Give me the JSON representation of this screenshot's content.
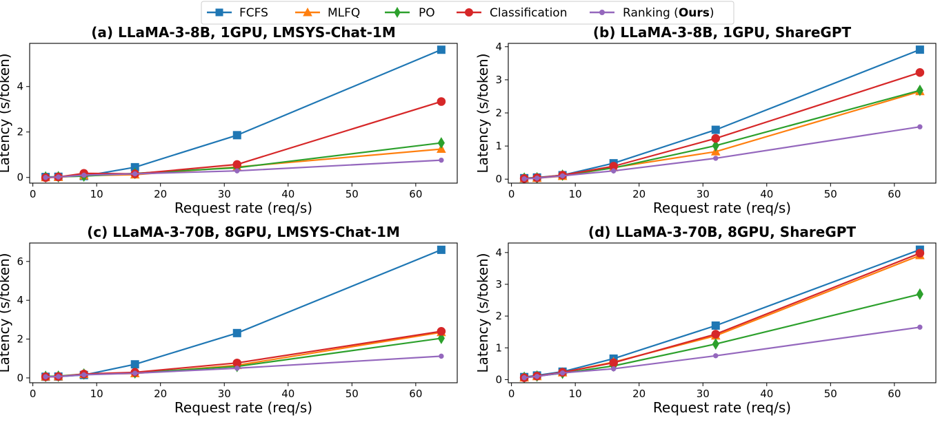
{
  "legend": {
    "items": [
      {
        "label": "FCFS",
        "suffix": "",
        "bold": "",
        "close": ""
      },
      {
        "label": "MLFQ",
        "suffix": "",
        "bold": "",
        "close": ""
      },
      {
        "label": "PO",
        "suffix": "",
        "bold": "",
        "close": ""
      },
      {
        "label": "Classification",
        "suffix": "",
        "bold": "",
        "close": ""
      },
      {
        "label": "Ranking (",
        "suffix": "",
        "bold": "Ours",
        "close": ")"
      }
    ]
  },
  "colors": {
    "FCFS": "#1f77b4",
    "MLFQ": "#ff7f0e",
    "PO": "#2ca02c",
    "Classification": "#d62728",
    "Ranking": "#9467bd"
  },
  "markers": {
    "FCFS": "square",
    "MLFQ": "triangle-up",
    "PO": "thin-diamond",
    "Classification": "circle",
    "Ranking": "small-circle"
  },
  "chart_data": [
    {
      "type": "line",
      "title": "(a) LLaMA-3-8B, 1GPU, LMSYS-Chat-1M",
      "xlabel": "Request rate (req/s)",
      "ylabel": "Latency (s/token)",
      "xlim": [
        -0.5,
        66.5
      ],
      "ylim": [
        -0.25,
        5.9
      ],
      "xticks": [
        0,
        10,
        20,
        30,
        40,
        50,
        60
      ],
      "yticks": [
        0,
        2,
        4
      ],
      "x": [
        2,
        4,
        8,
        16,
        32,
        64
      ],
      "series": [
        {
          "name": "FCFS",
          "values": [
            0.02,
            0.03,
            0.06,
            0.45,
            1.86,
            5.62
          ]
        },
        {
          "name": "MLFQ",
          "values": [
            0.0,
            0.01,
            0.08,
            0.12,
            0.46,
            1.25
          ]
        },
        {
          "name": "PO",
          "values": [
            0.02,
            0.03,
            0.06,
            0.18,
            0.43,
            1.52
          ]
        },
        {
          "name": "Classification",
          "values": [
            -0.01,
            0.02,
            0.18,
            0.16,
            0.57,
            3.34
          ]
        },
        {
          "name": "Ranking",
          "values": [
            0.0,
            0.02,
            0.1,
            0.16,
            0.29,
            0.76
          ]
        }
      ]
    },
    {
      "type": "line",
      "title": "(b) LLaMA-3-8B, 1GPU, ShareGPT",
      "xlabel": "Request rate (req/s)",
      "ylabel": "Latency (s/token)",
      "xlim": [
        -0.5,
        66.5
      ],
      "ylim": [
        -0.12,
        4.1
      ],
      "xticks": [
        0,
        10,
        20,
        30,
        40,
        50,
        60
      ],
      "yticks": [
        0,
        1,
        2,
        3,
        4
      ],
      "x": [
        2,
        4,
        8,
        16,
        32,
        64
      ],
      "series": [
        {
          "name": "FCFS",
          "values": [
            0.03,
            0.05,
            0.12,
            0.48,
            1.49,
            3.91
          ]
        },
        {
          "name": "MLFQ",
          "values": [
            0.02,
            0.03,
            0.09,
            0.35,
            0.83,
            2.65
          ]
        },
        {
          "name": "PO",
          "values": [
            0.03,
            0.04,
            0.12,
            0.34,
            1.01,
            2.68
          ]
        },
        {
          "name": "Classification",
          "values": [
            0.02,
            0.04,
            0.12,
            0.39,
            1.23,
            3.22
          ]
        },
        {
          "name": "Ranking",
          "values": [
            0.01,
            0.03,
            0.1,
            0.25,
            0.63,
            1.58
          ]
        }
      ]
    },
    {
      "type": "line",
      "title": "(c) LLaMA-3-70B, 8GPU, LMSYS-Chat-1M",
      "xlabel": "Request rate (req/s)",
      "ylabel": "Latency (s/token)",
      "xlim": [
        -0.5,
        66.5
      ],
      "ylim": [
        -0.25,
        6.95
      ],
      "xticks": [
        0,
        10,
        20,
        30,
        40,
        50,
        60
      ],
      "yticks": [
        0,
        2,
        4,
        6
      ],
      "x": [
        2,
        4,
        8,
        16,
        32,
        64
      ],
      "series": [
        {
          "name": "FCFS",
          "values": [
            0.06,
            0.07,
            0.15,
            0.7,
            2.31,
            6.6
          ]
        },
        {
          "name": "MLFQ",
          "values": [
            0.06,
            0.07,
            0.19,
            0.23,
            0.65,
            2.35
          ]
        },
        {
          "name": "PO",
          "values": [
            0.08,
            0.09,
            0.2,
            0.26,
            0.59,
            2.04
          ]
        },
        {
          "name": "Classification",
          "values": [
            0.06,
            0.07,
            0.2,
            0.29,
            0.77,
            2.4
          ]
        },
        {
          "name": "Ranking",
          "values": [
            0.06,
            0.07,
            0.16,
            0.24,
            0.5,
            1.12
          ]
        }
      ]
    },
    {
      "type": "line",
      "title": "(d) LLaMA-3-70B, 8GPU, ShareGPT",
      "xlabel": "Request rate (req/s)",
      "ylabel": "Latency (s/token)",
      "xlim": [
        -0.5,
        66.5
      ],
      "ylim": [
        -0.1,
        4.3
      ],
      "xticks": [
        0,
        10,
        20,
        30,
        40,
        50,
        60
      ],
      "yticks": [
        0,
        1,
        2,
        3,
        4
      ],
      "x": [
        2,
        4,
        8,
        16,
        32,
        64
      ],
      "series": [
        {
          "name": "FCFS",
          "values": [
            0.08,
            0.13,
            0.25,
            0.66,
            1.7,
            4.09
          ]
        },
        {
          "name": "MLFQ",
          "values": [
            0.06,
            0.1,
            0.22,
            0.55,
            1.38,
            3.91
          ]
        },
        {
          "name": "PO",
          "values": [
            0.07,
            0.11,
            0.2,
            0.43,
            1.12,
            2.69
          ]
        },
        {
          "name": "Classification",
          "values": [
            0.06,
            0.11,
            0.23,
            0.53,
            1.43,
            3.98
          ]
        },
        {
          "name": "Ranking",
          "values": [
            0.06,
            0.1,
            0.21,
            0.34,
            0.75,
            1.65
          ]
        }
      ]
    }
  ]
}
